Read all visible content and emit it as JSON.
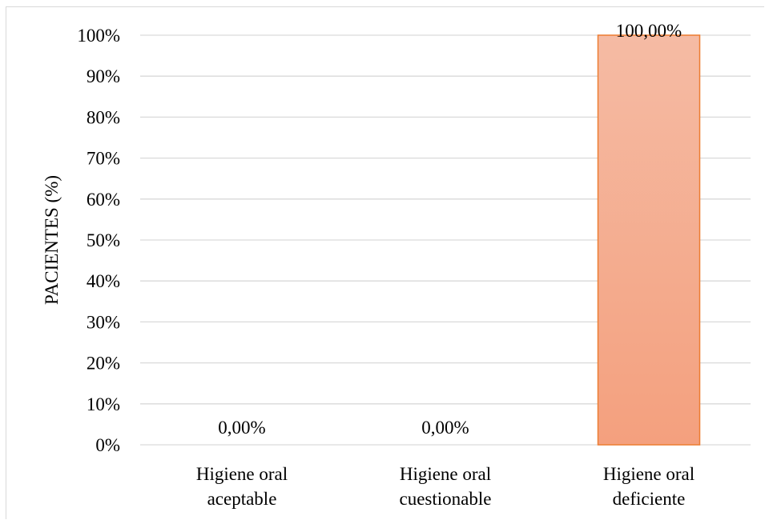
{
  "chart_data": {
    "type": "bar",
    "categories": [
      [
        "Higiene oral",
        "aceptable"
      ],
      [
        "Higiene oral",
        "cuestionable"
      ],
      [
        "Higiene oral",
        "deficiente"
      ]
    ],
    "values": [
      0,
      0,
      100
    ],
    "data_labels": [
      "0,00%",
      "0,00%",
      "100,00%"
    ],
    "ylabel": "PACIENTES (%)",
    "ylim": [
      0,
      100
    ],
    "yticks": [
      "0%",
      "10%",
      "20%",
      "30%",
      "40%",
      "50%",
      "60%",
      "70%",
      "80%",
      "90%",
      "100%"
    ],
    "grid": true,
    "colors": {
      "bar_top": "#f5bba4",
      "bar_bottom": "#f4a07e",
      "bar_edge": "#ed7d31",
      "grid": "#d9d9d9"
    }
  }
}
